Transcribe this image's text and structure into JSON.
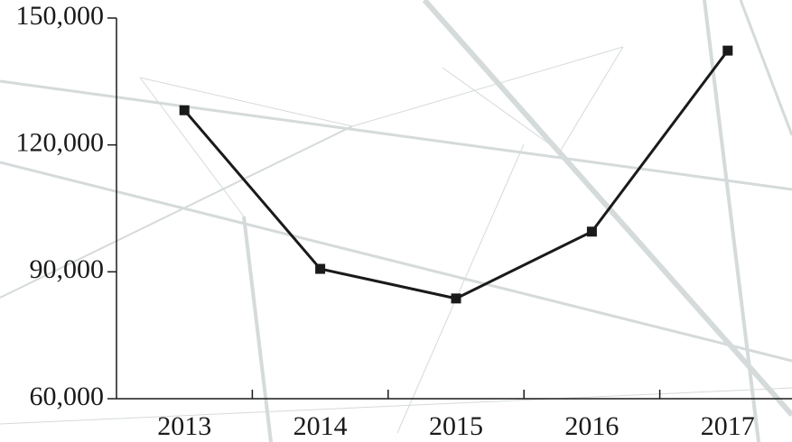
{
  "chart_data": {
    "type": "line",
    "categories": [
      "2013",
      "2014",
      "2015",
      "2016",
      "2017"
    ],
    "series": [
      {
        "color": "#1a1a1a",
        "values": [
          128200,
          90700,
          83700,
          99500,
          142300
        ]
      }
    ],
    "ylim": [
      60000,
      150000
    ],
    "yticks": [
      {
        "value": 60000,
        "label": "60,000"
      },
      {
        "value": 90000,
        "label": "90,000"
      },
      {
        "value": 120000,
        "label": "120,000"
      },
      {
        "value": 150000,
        "label": "150,000"
      }
    ],
    "grid": false
  }
}
